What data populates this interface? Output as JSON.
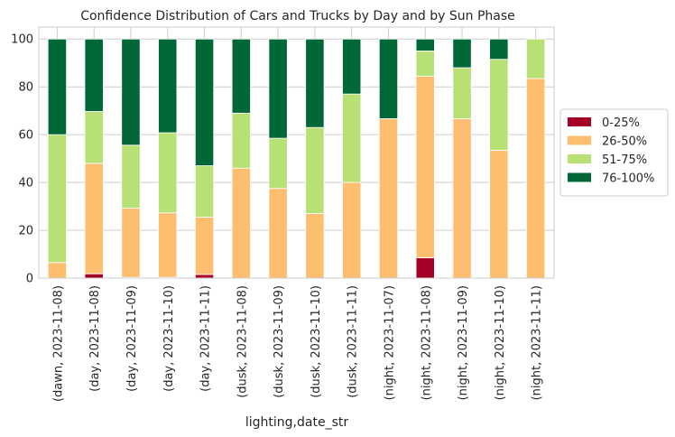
{
  "chart_data": {
    "type": "bar",
    "stacked": true,
    "title": "Confidence Distribution of Cars and Trucks by Day and by Sun Phase",
    "xlabel": "lighting,date_str",
    "ylabel": "",
    "ylim": [
      0,
      105
    ],
    "yticks": [
      0,
      20,
      40,
      60,
      80,
      100
    ],
    "grid": true,
    "legend_position": "right",
    "categories": [
      "(dawn, 2023-11-08)",
      "(day, 2023-11-08)",
      "(day, 2023-11-09)",
      "(day, 2023-11-10)",
      "(day, 2023-11-11)",
      "(dusk, 2023-11-08)",
      "(dusk, 2023-11-09)",
      "(dusk, 2023-11-10)",
      "(dusk, 2023-11-11)",
      "(night, 2023-11-07)",
      "(night, 2023-11-08)",
      "(night, 2023-11-09)",
      "(night, 2023-11-10)",
      "(night, 2023-11-11)"
    ],
    "series": [
      {
        "name": "0-25%",
        "color": "#a50026",
        "values": [
          0,
          1.8,
          0.3,
          0.3,
          1.5,
          0,
          0,
          0,
          0,
          0,
          8.5,
          0,
          0,
          0
        ]
      },
      {
        "name": "26-50%",
        "color": "#fdbf6f",
        "values": [
          6.5,
          46.2,
          29.0,
          27.0,
          24.0,
          46.0,
          37.5,
          27.0,
          40.0,
          66.7,
          76.0,
          66.7,
          53.5,
          83.5
        ]
      },
      {
        "name": "51-75%",
        "color": "#b7e075",
        "values": [
          53.5,
          21.7,
          26.3,
          33.5,
          21.5,
          23.0,
          21.0,
          36.0,
          37.0,
          0,
          10.5,
          21.3,
          38.0,
          16.5
        ]
      },
      {
        "name": "76-100%",
        "color": "#006837",
        "values": [
          40.0,
          30.3,
          44.4,
          39.2,
          53.0,
          31.0,
          41.5,
          37.0,
          23.0,
          33.3,
          5.0,
          12.0,
          8.5,
          0
        ]
      }
    ]
  }
}
